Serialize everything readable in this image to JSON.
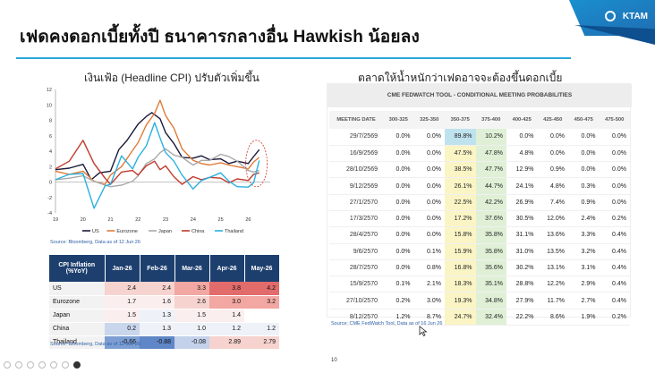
{
  "slide": {
    "title": "เฟดคงดอกเบี้ยทั้งปี ธนาคารกลางอื่น Hawkish น้อยลง",
    "logo_text": "KTAM",
    "page_number": "10"
  },
  "left_panel": {
    "title": "เงินเฟ้อ (Headline CPI) ปรับตัวเพิ่มขึ้น",
    "chart_source": "Source: Bloomberg, Data as of 12 Jun 26",
    "table_source": "Source: Bloomberg, Data as of 12 Jun 26"
  },
  "chart_data": {
    "type": "line",
    "x_ticks": [
      "19",
      "20",
      "21",
      "22",
      "23",
      "24",
      "25",
      "26"
    ],
    "y_ticks": [
      "12",
      "10",
      "8",
      "6",
      "4",
      "2",
      "0",
      "-2",
      "-4"
    ],
    "ylim": [
      -4,
      12
    ],
    "xlim": [
      2019,
      2026.8
    ],
    "legend": [
      "US",
      "Eurozone",
      "Japan",
      "China",
      "Thailand"
    ],
    "legend_placement": "bottom",
    "grid": false,
    "colors": {
      "US": "#1a1a3a",
      "Eurozone": "#e07b39",
      "Japan": "#a9a9a9",
      "China": "#c0392b",
      "Thailand": "#2ab0e0"
    },
    "series": [
      {
        "name": "US",
        "x": [
          2019,
          2019.5,
          2020,
          2020.3,
          2020.6,
          2021,
          2021.3,
          2021.6,
          2022,
          2022.3,
          2022.5,
          2022.8,
          2023,
          2023.3,
          2023.6,
          2024,
          2024.3,
          2024.6,
          2025,
          2025.3,
          2025.6,
          2026,
          2026.2,
          2026.4
        ],
        "values": [
          1.6,
          1.8,
          2.3,
          0.3,
          1.2,
          1.4,
          4.2,
          5.4,
          7.5,
          8.5,
          9.0,
          8.2,
          6.4,
          5.0,
          3.2,
          3.1,
          3.4,
          2.9,
          3.0,
          2.4,
          2.7,
          2.4,
          3.3,
          4.2
        ]
      },
      {
        "name": "Eurozone",
        "x": [
          2019,
          2019.5,
          2020,
          2020.4,
          2020.8,
          2021,
          2021.4,
          2021.8,
          2022,
          2022.3,
          2022.6,
          2022.8,
          2023,
          2023.3,
          2023.6,
          2024,
          2024.3,
          2024.6,
          2025,
          2025.3,
          2025.6,
          2026,
          2026.2,
          2026.4
        ],
        "values": [
          1.4,
          1.0,
          1.4,
          0.1,
          -0.3,
          0.9,
          2.0,
          4.1,
          5.1,
          7.4,
          8.9,
          10.6,
          8.6,
          7.0,
          4.3,
          2.8,
          2.4,
          2.2,
          2.5,
          2.2,
          2.0,
          1.7,
          2.6,
          3.2
        ]
      },
      {
        "name": "Japan",
        "x": [
          2019,
          2019.5,
          2020,
          2020.4,
          2020.8,
          2021,
          2021.4,
          2021.8,
          2022,
          2022.3,
          2022.6,
          2022.8,
          2023,
          2023.3,
          2023.6,
          2024,
          2024.3,
          2024.6,
          2025,
          2025.3,
          2025.6,
          2026,
          2026.2,
          2026.4
        ],
        "values": [
          0.3,
          0.5,
          0.8,
          0.1,
          -0.4,
          -0.6,
          -0.4,
          0.1,
          0.8,
          2.4,
          3.0,
          3.8,
          4.3,
          3.5,
          3.2,
          2.2,
          2.8,
          2.8,
          3.6,
          3.3,
          2.7,
          1.5,
          1.3,
          1.5
        ]
      },
      {
        "name": "China",
        "x": [
          2019,
          2019.5,
          2020,
          2020.4,
          2020.8,
          2021,
          2021.4,
          2021.8,
          2022,
          2022.3,
          2022.6,
          2022.8,
          2023,
          2023.3,
          2023.6,
          2024,
          2024.3,
          2024.6,
          2025,
          2025.3,
          2025.6,
          2026,
          2026.2,
          2026.4
        ],
        "values": [
          1.7,
          2.7,
          5.4,
          2.4,
          0.5,
          -0.3,
          1.3,
          1.5,
          0.9,
          2.1,
          2.7,
          1.6,
          2.1,
          0.7,
          -0.3,
          0.7,
          0.3,
          0.6,
          0.5,
          -0.1,
          0.4,
          0.2,
          1.0,
          1.2
        ]
      },
      {
        "name": "Thailand",
        "x": [
          2019,
          2019.5,
          2020,
          2020.4,
          2020.8,
          2021,
          2021.4,
          2021.8,
          2022,
          2022.3,
          2022.6,
          2022.8,
          2023,
          2023.3,
          2023.6,
          2024,
          2024.3,
          2024.6,
          2025,
          2025.3,
          2025.6,
          2026,
          2026.2,
          2026.4
        ],
        "values": [
          0.3,
          1.0,
          1.1,
          -3.4,
          -0.5,
          -0.3,
          3.4,
          1.7,
          3.2,
          4.7,
          7.7,
          5.7,
          3.8,
          2.7,
          0.9,
          -0.9,
          0.2,
          0.6,
          1.2,
          0.1,
          -0.6,
          -0.66,
          -0.08,
          2.79
        ]
      }
    ]
  },
  "inflation_table": {
    "row_header": "CPI Inflation (%YoY)",
    "columns": [
      "Jan-26",
      "Feb-26",
      "Mar-26",
      "Apr-26",
      "May-26"
    ],
    "rows": [
      {
        "country": "US",
        "values": [
          "2.4",
          "2.4",
          "3.3",
          "3.8",
          "4.2"
        ]
      },
      {
        "country": "Eurozone",
        "values": [
          "1.7",
          "1.6",
          "2.6",
          "3.0",
          "3.2"
        ]
      },
      {
        "country": "Japan",
        "values": [
          "1.5",
          "1.3",
          "1.5",
          "1.4",
          ""
        ]
      },
      {
        "country": "China",
        "values": [
          "0.2",
          "1.3",
          "1.0",
          "1.2",
          "1.2"
        ]
      },
      {
        "country": "Thailand",
        "values": [
          "-0.66",
          "-0.88",
          "-0.08",
          "2.89",
          "2.79"
        ]
      }
    ]
  },
  "right_panel": {
    "title": "ตลาดให้น้ำหนักว่าเฟดอาจจะต้องขึ้นดอกเบี้ย",
    "tool_title": "CME FEDWATCH TOOL - CONDITIONAL MEETING PROBABILITIES",
    "source": "Source: CME FedWatch Tool, Data as of 16 Jun 26",
    "columns": [
      "MEETING DATE",
      "300-325",
      "325-350",
      "350-375",
      "375-400",
      "400-425",
      "425-450",
      "450-475",
      "475-500"
    ],
    "rows": [
      {
        "date": "29/7/2569",
        "values": [
          "0.0%",
          "0.0%",
          "89.8%",
          "10.2%",
          "0.0%",
          "0.0%",
          "0.0%",
          "0.0%"
        ]
      },
      {
        "date": "16/9/2569",
        "values": [
          "0.0%",
          "0.0%",
          "47.5%",
          "47.8%",
          "4.8%",
          "0.0%",
          "0.0%",
          "0.0%"
        ]
      },
      {
        "date": "28/10/2569",
        "values": [
          "0.0%",
          "0.0%",
          "38.5%",
          "47.7%",
          "12.9%",
          "0.9%",
          "0.0%",
          "0.0%"
        ]
      },
      {
        "date": "9/12/2569",
        "values": [
          "0.0%",
          "0.0%",
          "26.1%",
          "44.7%",
          "24.1%",
          "4.8%",
          "0.3%",
          "0.0%"
        ]
      },
      {
        "date": "27/1/2570",
        "values": [
          "0.0%",
          "0.0%",
          "22.5%",
          "42.2%",
          "26.9%",
          "7.4%",
          "0.9%",
          "0.0%"
        ]
      },
      {
        "date": "17/3/2570",
        "values": [
          "0.0%",
          "0.0%",
          "17.2%",
          "37.6%",
          "30.5%",
          "12.0%",
          "2.4%",
          "0.2%"
        ]
      },
      {
        "date": "28/4/2570",
        "values": [
          "0.0%",
          "0.0%",
          "15.8%",
          "35.8%",
          "31.1%",
          "13.6%",
          "3.3%",
          "0.4%"
        ]
      },
      {
        "date": "9/6/2570",
        "values": [
          "0.0%",
          "0.1%",
          "15.9%",
          "35.8%",
          "31.0%",
          "13.5%",
          "3.2%",
          "0.4%"
        ]
      },
      {
        "date": "28/7/2570",
        "values": [
          "0.0%",
          "0.8%",
          "16.8%",
          "35.6%",
          "30.2%",
          "13.1%",
          "3.1%",
          "0.4%"
        ]
      },
      {
        "date": "15/9/2570",
        "values": [
          "0.1%",
          "2.1%",
          "18.3%",
          "35.1%",
          "28.8%",
          "12.2%",
          "2.9%",
          "0.4%"
        ]
      },
      {
        "date": "27/10/2570",
        "values": [
          "0.2%",
          "3.0%",
          "19.3%",
          "34.8%",
          "27.9%",
          "11.7%",
          "2.7%",
          "0.4%"
        ]
      },
      {
        "date": "8/12/2570",
        "values": [
          "1.2%",
          "8.7%",
          "24.7%",
          "32.4%",
          "22.2%",
          "8.6%",
          "1.9%",
          "0.2%"
        ]
      }
    ]
  },
  "toolbar": {
    "icons": [
      "navigate-icon",
      "pen-icon",
      "pointer-icon",
      "grid-icon",
      "zoom-icon",
      "subtitle-icon",
      "more-icon"
    ]
  }
}
